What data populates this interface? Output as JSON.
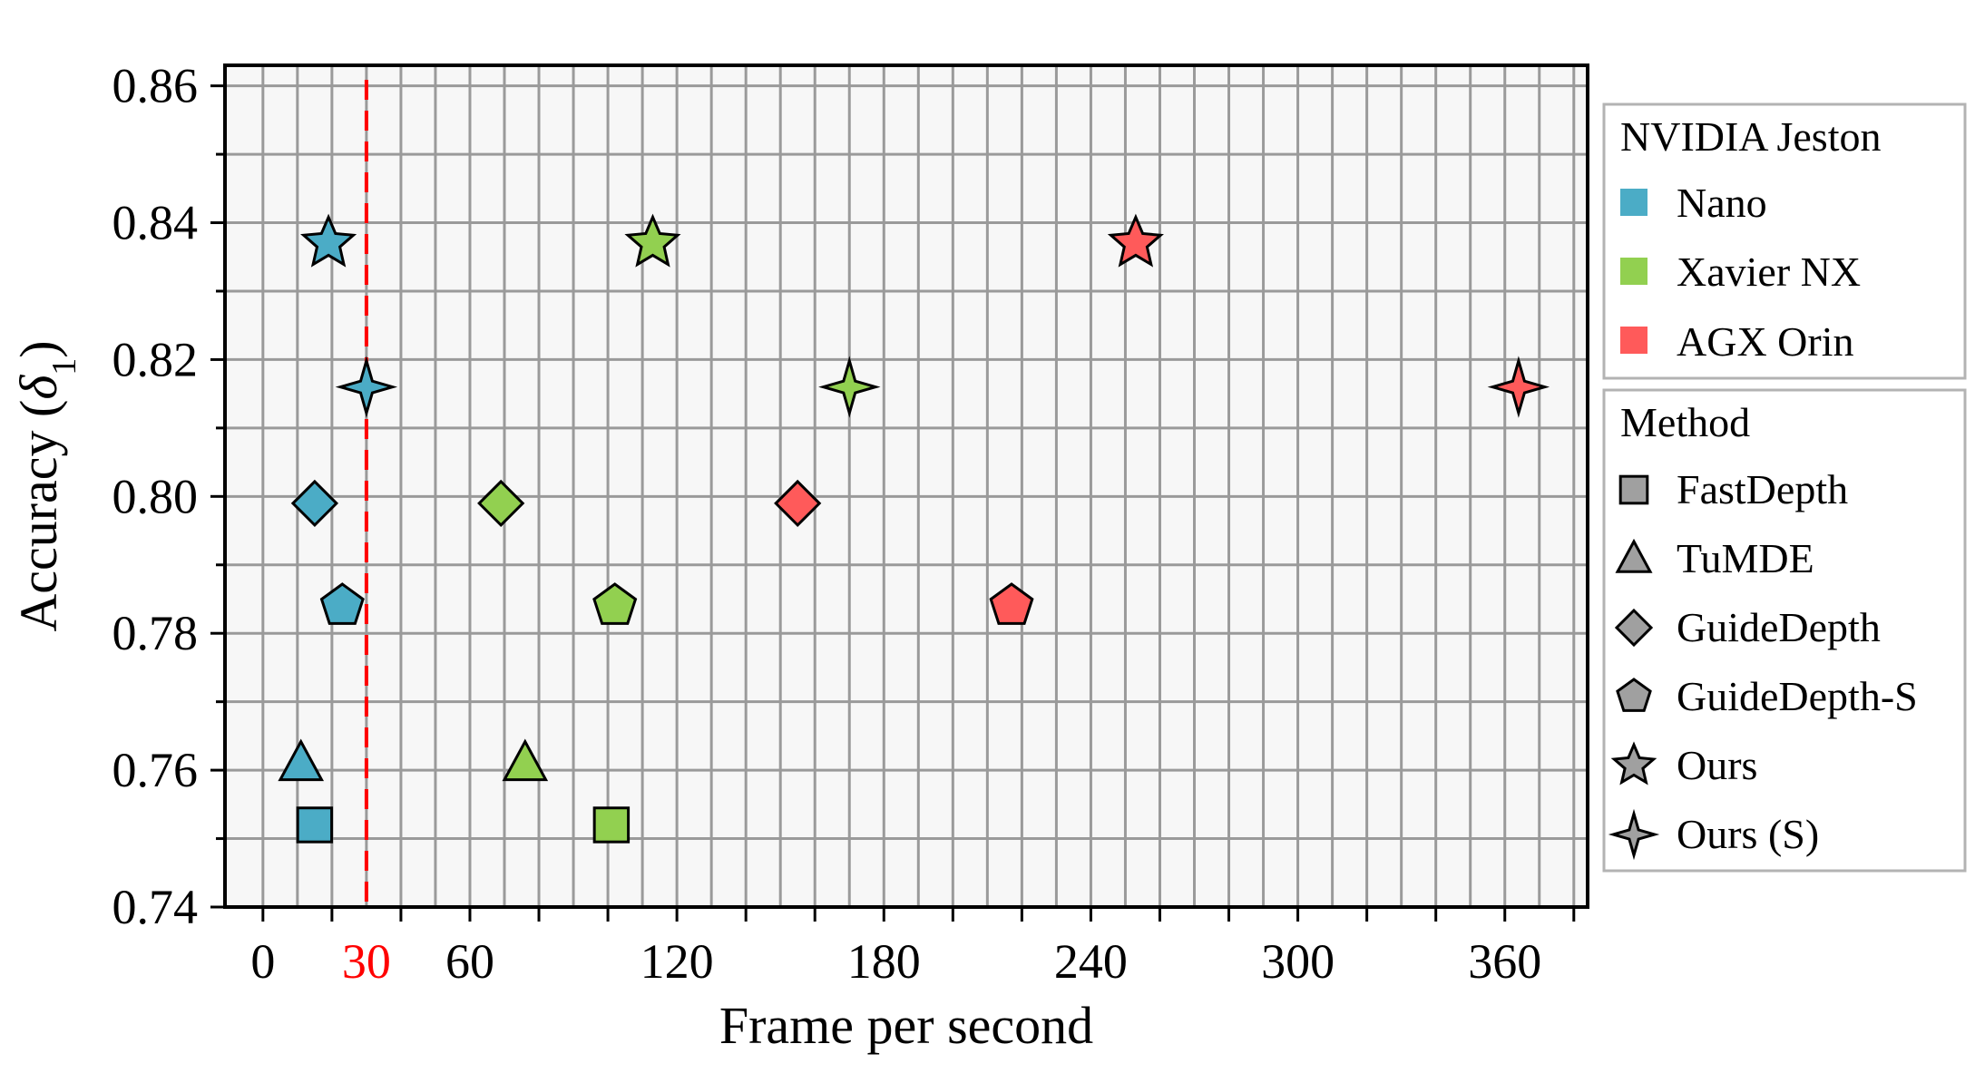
{
  "chart_data": {
    "type": "scatter",
    "xlabel": "Frame per second",
    "ylabel": "Accuracy (δ1)",
    "ylabel_main": "Accuracy (",
    "ylabel_symbol": "δ",
    "ylabel_subscript": "1",
    "ylabel_close": ")",
    "xlim": [
      -11,
      384
    ],
    "ylim": [
      0.74,
      0.863
    ],
    "x_ticks": [
      0,
      30,
      60,
      120,
      180,
      240,
      300,
      360
    ],
    "x_tick_labels": [
      "0",
      "30",
      "60",
      "120",
      "180",
      "240",
      "300",
      "360"
    ],
    "x_tick_colors": [
      "#000000",
      "#ff0000",
      "#000000",
      "#000000",
      "#000000",
      "#000000",
      "#000000",
      "#000000"
    ],
    "x_major_grid_step": 20,
    "y_ticks": [
      0.74,
      0.76,
      0.78,
      0.8,
      0.82,
      0.84,
      0.86
    ],
    "y_tick_labels": [
      "0.74",
      "0.76",
      "0.78",
      "0.80",
      "0.82",
      "0.84",
      "0.86"
    ],
    "y_minor_step": 0.01,
    "grid": true,
    "reference_line": {
      "x": 30,
      "color": "#ff0000",
      "style": "dashed"
    },
    "legend": {
      "placement": "right, outside plot",
      "devices_title": "NVIDIA Jeston",
      "devices": [
        {
          "name": "Nano",
          "color": "#4bacc6"
        },
        {
          "name": "Xavier NX",
          "color": "#92d050"
        },
        {
          "name": "AGX Orin",
          "color": "#ff5a5a"
        }
      ],
      "methods_title": "Method",
      "methods": [
        {
          "name": "FastDepth",
          "marker": "square"
        },
        {
          "name": "TuMDE",
          "marker": "triangle"
        },
        {
          "name": "GuideDepth",
          "marker": "diamond"
        },
        {
          "name": "GuideDepth-S",
          "marker": "pentagon"
        },
        {
          "name": "Ours",
          "marker": "star"
        },
        {
          "name": "Ours (S)",
          "marker": "star4"
        }
      ],
      "marker_color": "#a0a0a0"
    },
    "points": [
      {
        "device": "Nano",
        "method": "FastDepth",
        "x": 15,
        "y": 0.752
      },
      {
        "device": "Nano",
        "method": "TuMDE",
        "x": 11,
        "y": 0.761
      },
      {
        "device": "Nano",
        "method": "GuideDepth",
        "x": 15,
        "y": 0.799
      },
      {
        "device": "Nano",
        "method": "GuideDepth-S",
        "x": 23,
        "y": 0.784
      },
      {
        "device": "Nano",
        "method": "Ours",
        "x": 19,
        "y": 0.837
      },
      {
        "device": "Nano",
        "method": "Ours (S)",
        "x": 30,
        "y": 0.816
      },
      {
        "device": "Xavier NX",
        "method": "FastDepth",
        "x": 101,
        "y": 0.752
      },
      {
        "device": "Xavier NX",
        "method": "TuMDE",
        "x": 76,
        "y": 0.761
      },
      {
        "device": "Xavier NX",
        "method": "GuideDepth",
        "x": 69,
        "y": 0.799
      },
      {
        "device": "Xavier NX",
        "method": "GuideDepth-S",
        "x": 102,
        "y": 0.784
      },
      {
        "device": "Xavier NX",
        "method": "Ours",
        "x": 113,
        "y": 0.837
      },
      {
        "device": "Xavier NX",
        "method": "Ours (S)",
        "x": 170,
        "y": 0.816
      },
      {
        "device": "AGX Orin",
        "method": "GuideDepth",
        "x": 155,
        "y": 0.799
      },
      {
        "device": "AGX Orin",
        "method": "GuideDepth-S",
        "x": 217,
        "y": 0.784
      },
      {
        "device": "AGX Orin",
        "method": "Ours",
        "x": 253,
        "y": 0.837
      },
      {
        "device": "AGX Orin",
        "method": "Ours (S)",
        "x": 364,
        "y": 0.816
      }
    ]
  }
}
